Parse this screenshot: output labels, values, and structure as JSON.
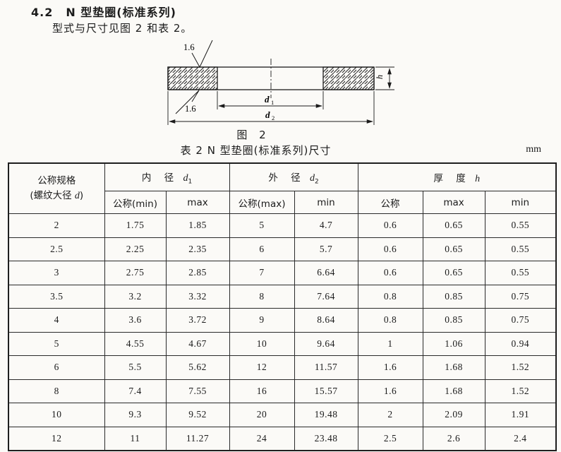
{
  "page": {
    "background": "#fbfaf7",
    "ink": "#1b1b1b"
  },
  "heading": {
    "number": "4.2",
    "title": "N 型垫圈(标准系列)",
    "subtitle": "型式与尺寸见图 2 和表 2。"
  },
  "figure": {
    "caption": "图 2",
    "roughness_top": "1.6",
    "roughness_bottom": "1.6",
    "d1_sym": "d",
    "d1_sub": "1",
    "d2_sym": "d",
    "d2_sub": "2",
    "h_sym": "h"
  },
  "table": {
    "caption": "表 2  N 型垫圈(标准系列)尺寸",
    "unit": "mm",
    "header": {
      "spec_line1": "公称规格",
      "spec_line2_pre": "(螺纹大径 ",
      "spec_line2_sym": "d",
      "spec_line2_post": ")",
      "d1_label": "内  径",
      "d1_sym": "d",
      "d1_sub": "1",
      "d2_label": "外  径",
      "d2_sym": "d",
      "d2_sub": "2",
      "h_label": "厚  度",
      "h_sym": "h",
      "sub_labels": [
        "公称(min)",
        "max",
        "公称(max)",
        "min",
        "公称",
        "max",
        "min"
      ]
    },
    "rows": [
      [
        "2",
        "1.75",
        "1.85",
        "5",
        "4.7",
        "0.6",
        "0.65",
        "0.55"
      ],
      [
        "2.5",
        "2.25",
        "2.35",
        "6",
        "5.7",
        "0.6",
        "0.65",
        "0.55"
      ],
      [
        "3",
        "2.75",
        "2.85",
        "7",
        "6.64",
        "0.6",
        "0.65",
        "0.55"
      ],
      [
        "3.5",
        "3.2",
        "3.32",
        "8",
        "7.64",
        "0.8",
        "0.85",
        "0.75"
      ],
      [
        "4",
        "3.6",
        "3.72",
        "9",
        "8.64",
        "0.8",
        "0.85",
        "0.75"
      ],
      [
        "5",
        "4.55",
        "4.67",
        "10",
        "9.64",
        "1",
        "1.06",
        "0.94"
      ],
      [
        "6",
        "5.5",
        "5.62",
        "12",
        "11.57",
        "1.6",
        "1.68",
        "1.52"
      ],
      [
        "8",
        "7.4",
        "7.55",
        "16",
        "15.57",
        "1.6",
        "1.68",
        "1.52"
      ],
      [
        "10",
        "9.3",
        "9.52",
        "20",
        "19.48",
        "2",
        "2.09",
        "1.91"
      ],
      [
        "12",
        "11",
        "11.27",
        "24",
        "23.48",
        "2.5",
        "2.6",
        "2.4"
      ]
    ]
  }
}
